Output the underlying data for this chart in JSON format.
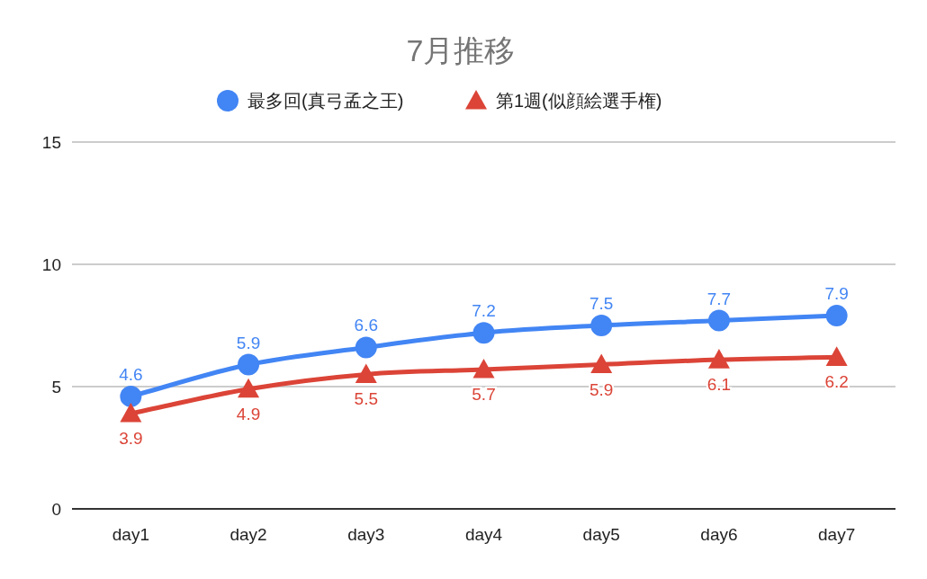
{
  "chart_data": {
    "type": "line",
    "title": "7月推移",
    "categories": [
      "day1",
      "day2",
      "day3",
      "day4",
      "day5",
      "day6",
      "day7"
    ],
    "series": [
      {
        "name": "最多回(真弓孟之王)",
        "color": "#4285f4",
        "marker": "circle",
        "values": [
          4.6,
          5.9,
          6.6,
          7.2,
          7.5,
          7.7,
          7.9
        ]
      },
      {
        "name": "第1週(似顔絵選手権)",
        "color": "#db4437",
        "marker": "triangle",
        "values": [
          3.9,
          4.9,
          5.5,
          5.7,
          5.9,
          6.1,
          6.2
        ]
      }
    ],
    "ylim": [
      0,
      15
    ],
    "yticks": [
      0,
      5,
      10,
      15
    ],
    "grid": "y",
    "legend": "top",
    "data_labels": true
  }
}
